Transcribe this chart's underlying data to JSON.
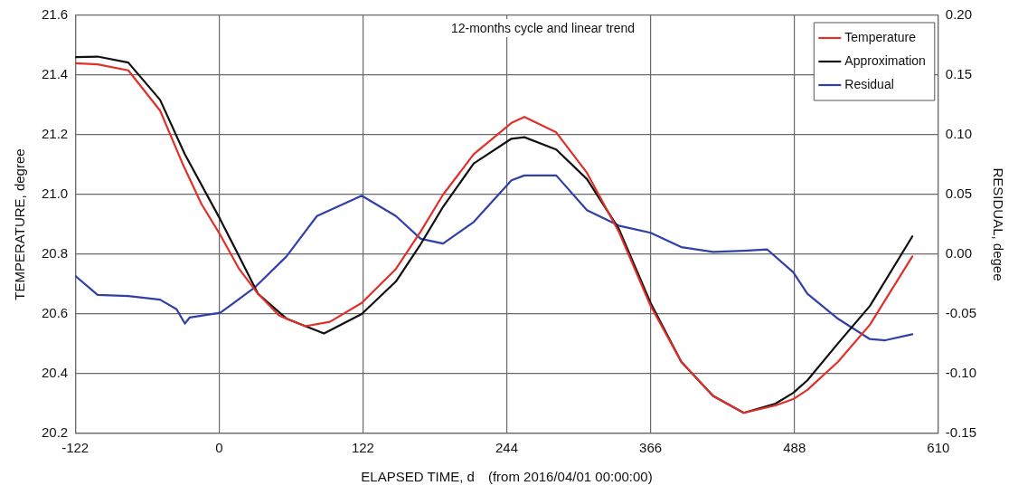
{
  "chart_data": {
    "type": "line",
    "title": "12-months cycle and linear trend",
    "xlabel": "ELAPSED TIME, d　(from 2016/04/01 00:00:00)",
    "ylabel": "TEMPERATURE, degree",
    "y2label": "RESIDUAL, degee",
    "xlim": [
      -122,
      610
    ],
    "xticks": [
      -122,
      0,
      122,
      244,
      366,
      488,
      610
    ],
    "ylim": [
      20.2,
      21.6
    ],
    "yticks": [
      {
        "value": 20.2,
        "label": "20.2"
      },
      {
        "value": 20.4,
        "label": "20.4"
      },
      {
        "value": 20.6,
        "label": "20.6"
      },
      {
        "value": 20.8,
        "label": "20.8"
      },
      {
        "value": 21.0,
        "label": "21.0"
      },
      {
        "value": 21.2,
        "label": "21.2"
      },
      {
        "value": 21.4,
        "label": "21.4"
      },
      {
        "value": 21.6,
        "label": "21.6"
      }
    ],
    "y2lim": [
      -0.15,
      0.2
    ],
    "y2ticks": [
      {
        "value": -0.15,
        "label": "-0.15"
      },
      {
        "value": -0.1,
        "label": "-0.10"
      },
      {
        "value": -0.05,
        "label": "-0.05"
      },
      {
        "value": 0,
        "label": "0.00"
      },
      {
        "value": 0.05,
        "label": "0.05"
      },
      {
        "value": 0.1,
        "label": "0.10"
      },
      {
        "value": 0.15,
        "label": "0.15"
      },
      {
        "value": 0.2,
        "label": "0.20"
      }
    ],
    "grid": true,
    "legend": "top right",
    "marker": "none",
    "line_style": "solid",
    "series": [
      {
        "name": "Temperature",
        "color": "#e0302a",
        "x": [
          -122,
          -103,
          -77,
          -50,
          -31,
          -15,
          1,
          17,
          33,
          51,
          73,
          94,
          121,
          150,
          171,
          190,
          216,
          248,
          259,
          286,
          312,
          339,
          366,
          392,
          419,
          445,
          472,
          487,
          499,
          525,
          552,
          588
        ],
        "values": [
          21.44,
          21.436,
          21.416,
          21.281,
          21.104,
          20.969,
          20.865,
          20.751,
          20.668,
          20.595,
          20.559,
          20.574,
          20.637,
          20.751,
          20.876,
          21.0,
          21.135,
          21.24,
          21.26,
          21.208,
          21.073,
          20.876,
          20.627,
          20.44,
          20.326,
          20.269,
          20.294,
          20.315,
          20.346,
          20.44,
          20.564,
          20.793
        ]
      },
      {
        "name": "Approximation",
        "color": "#111111",
        "x": [
          -122,
          -103,
          -77,
          -50,
          -29,
          1,
          17,
          33,
          57,
          89,
          121,
          150,
          171,
          190,
          216,
          248,
          259,
          286,
          312,
          339,
          366,
          392,
          419,
          445,
          472,
          487,
          499,
          525,
          552,
          588
        ],
        "values": [
          21.46,
          21.462,
          21.442,
          21.317,
          21.135,
          20.917,
          20.793,
          20.668,
          20.585,
          20.535,
          20.6,
          20.709,
          20.834,
          20.959,
          21.104,
          21.187,
          21.192,
          21.151,
          21.052,
          20.886,
          20.637,
          20.44,
          20.326,
          20.269,
          20.3,
          20.336,
          20.378,
          20.502,
          20.627,
          20.86
        ]
      },
      {
        "name": "Residual",
        "color": "#3040a8",
        "axis": "y2",
        "x": [
          -122,
          -103,
          -77,
          -50,
          -36,
          -29,
          -25,
          1,
          30,
          57,
          83,
          121,
          150,
          171,
          190,
          216,
          248,
          259,
          286,
          312,
          339,
          366,
          392,
          419,
          445,
          465,
          487,
          499,
          525,
          552,
          565,
          588
        ],
        "values": [
          -0.018,
          -0.034,
          -0.035,
          -0.038,
          -0.046,
          -0.058,
          -0.053,
          -0.049,
          -0.028,
          -0.002,
          0.032,
          0.049,
          0.032,
          0.013,
          0.009,
          0.027,
          0.062,
          0.066,
          0.066,
          0.037,
          0.024,
          0.018,
          0.006,
          0.002,
          0.003,
          0.004,
          -0.015,
          -0.033,
          -0.054,
          -0.071,
          -0.072,
          -0.067
        ]
      }
    ]
  }
}
